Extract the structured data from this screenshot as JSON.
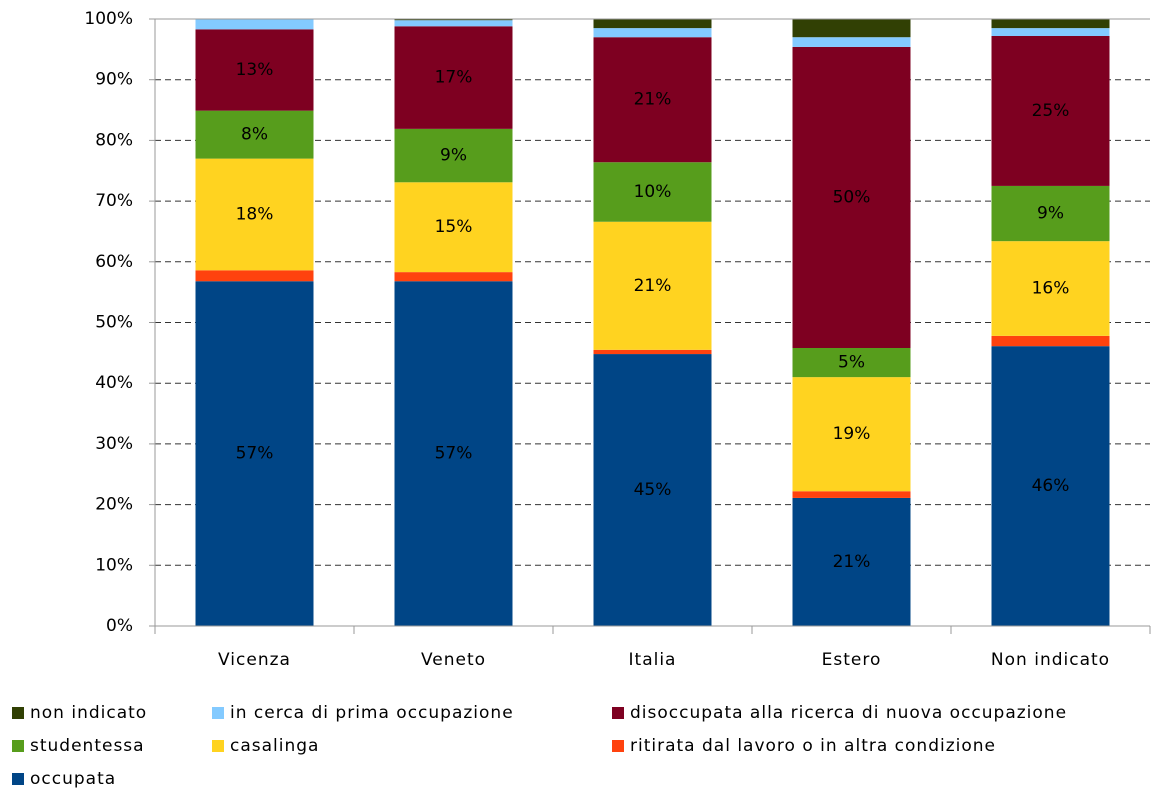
{
  "chart_data": {
    "type": "stacked_bar",
    "categories": [
      "Vicenza",
      "Veneto",
      "Italia",
      "Estero",
      "Non indicato"
    ],
    "series": [
      {
        "name": "occupata",
        "color": "#004586",
        "values": [
          56.8,
          56.8,
          44.8,
          21.1,
          46.1
        ],
        "value_labels": [
          "57%",
          "57%",
          "45%",
          "21%",
          "46%"
        ]
      },
      {
        "name": "ritirata dal lavoro o in altra condizione",
        "color": "#ff420e",
        "values": [
          1.8,
          1.5,
          0.7,
          1.1,
          1.7
        ],
        "value_labels": [
          null,
          null,
          null,
          null,
          null
        ]
      },
      {
        "name": "casalinga",
        "color": "#ffd320",
        "values": [
          18.4,
          14.8,
          21.1,
          18.8,
          15.6
        ],
        "value_labels": [
          "18%",
          "15%",
          "21%",
          "19%",
          "16%"
        ]
      },
      {
        "name": "studentessa",
        "color": "#579d1c",
        "values": [
          7.9,
          8.8,
          9.8,
          4.8,
          9.1
        ],
        "value_labels": [
          "8%",
          "9%",
          "10%",
          "5%",
          "9%"
        ]
      },
      {
        "name": "disoccupata alla ricerca di nuova occupazione",
        "color": "#7e0021",
        "values": [
          13.4,
          16.9,
          20.6,
          49.6,
          24.7
        ],
        "value_labels": [
          "13%",
          "17%",
          "21%",
          "50%",
          "25%"
        ]
      },
      {
        "name": "in cerca di prima occupazione",
        "color": "#83caff",
        "values": [
          1.7,
          1.0,
          1.5,
          1.6,
          1.3
        ],
        "value_labels": [
          null,
          null,
          null,
          null,
          null
        ]
      },
      {
        "name": "non indicato",
        "color": "#314004",
        "values": [
          0,
          0.2,
          1.5,
          3.0,
          1.5
        ],
        "value_labels": [
          null,
          null,
          null,
          null,
          null
        ]
      }
    ],
    "ylim": [
      0,
      100
    ],
    "yticks": [
      {
        "value": 0,
        "label": "0%"
      },
      {
        "value": 10,
        "label": "10%"
      },
      {
        "value": 20,
        "label": "20%"
      },
      {
        "value": 30,
        "label": "30%"
      },
      {
        "value": 40,
        "label": "40%"
      },
      {
        "value": 50,
        "label": "50%"
      },
      {
        "value": 60,
        "label": "60%"
      },
      {
        "value": 70,
        "label": "70%"
      },
      {
        "value": 80,
        "label": "80%"
      },
      {
        "value": 90,
        "label": "90%"
      },
      {
        "value": 100,
        "label": "100%"
      }
    ],
    "grid": true,
    "legend": "bottom"
  }
}
